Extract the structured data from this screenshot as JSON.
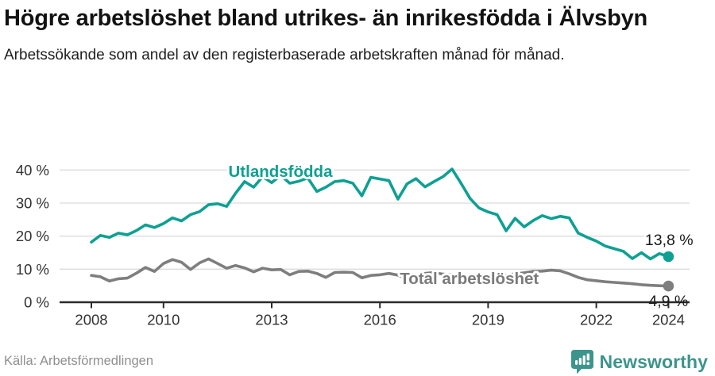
{
  "header": {
    "title": "Högre arbetslöshet bland utrikes- än inrikesfödda i Älvsbyn",
    "subtitle": "Arbetssökande som andel av den registerbaserade arbetskraften månad för månad."
  },
  "footer": {
    "source": "Källa: Arbetsförmedlingen",
    "brand": "Newsworthy"
  },
  "colors": {
    "teal_series": "#0ea093",
    "gray_series": "#7e7e7e",
    "gray_label": "#7a7a7a",
    "value_label": "#1a1a1a",
    "grid": "#dcdcdc",
    "axis": "#2b2b2b",
    "tick_text": "#333333",
    "brand_teal": "#3d948c"
  },
  "chart_data": {
    "type": "line",
    "title": "Högre arbetslöshet bland utrikes- än inrikesfödda i Älvsbyn",
    "subtitle": "Arbetssökande som andel av den registerbaserade arbetskraften månad för månad.",
    "xlabel": "",
    "ylabel": "",
    "xlim": [
      2007.1,
      2024.6
    ],
    "ylim": [
      0,
      43
    ],
    "grid": "horizontal",
    "legend_position": "inline",
    "x_ticks": [
      2008,
      2010,
      2013,
      2016,
      2019,
      2022,
      2024
    ],
    "x_tick_labels": [
      "2008",
      "2010",
      "2013",
      "2016",
      "2019",
      "2022",
      "2024"
    ],
    "y_ticks": [
      0,
      10,
      20,
      30,
      40
    ],
    "y_tick_labels": [
      "0 %",
      "10 %",
      "20 %",
      "30 %",
      "40 %"
    ],
    "x": [
      2008,
      2008.25,
      2008.5,
      2008.75,
      2009,
      2009.25,
      2009.5,
      2009.75,
      2010,
      2010.25,
      2010.5,
      2010.75,
      2011,
      2011.25,
      2011.5,
      2011.75,
      2012,
      2012.25,
      2012.5,
      2012.75,
      2013,
      2013.25,
      2013.5,
      2013.75,
      2014,
      2014.25,
      2014.5,
      2014.75,
      2015,
      2015.25,
      2015.5,
      2015.75,
      2016,
      2016.25,
      2016.5,
      2016.75,
      2017,
      2017.25,
      2017.5,
      2017.75,
      2018,
      2018.25,
      2018.5,
      2018.75,
      2019,
      2019.25,
      2019.5,
      2019.75,
      2020,
      2020.25,
      2020.5,
      2020.75,
      2021,
      2021.25,
      2021.5,
      2021.75,
      2022,
      2022.25,
      2022.5,
      2022.75,
      2023,
      2023.25,
      2023.5,
      2023.75,
      2024
    ],
    "series": [
      {
        "name": "Utlandsfödda",
        "color": "#0ea093",
        "end_value": 13.8,
        "end_label": "13,8 %",
        "values": [
          18.2,
          20.2,
          19.6,
          20.9,
          20.4,
          21.7,
          23.4,
          22.6,
          23.8,
          25.5,
          24.6,
          26.5,
          27.4,
          29.5,
          29.8,
          29.0,
          33.0,
          36.5,
          34.8,
          38.0,
          36.2,
          38.4,
          36.0,
          36.6,
          37.6,
          33.5,
          34.8,
          36.5,
          36.8,
          36.0,
          32.2,
          37.8,
          37.3,
          36.8,
          31.2,
          35.8,
          37.4,
          34.9,
          36.5,
          38.0,
          40.3,
          36.0,
          31.4,
          28.5,
          27.3,
          26.5,
          21.6,
          25.4,
          22.8,
          24.7,
          26.2,
          25.3,
          26.0,
          25.5,
          20.9,
          19.6,
          18.5,
          17.0,
          16.2,
          15.4,
          13.2,
          15.0,
          13.1,
          14.7,
          13.8
        ]
      },
      {
        "name": "Total arbetslöshet",
        "color": "#7e7e7e",
        "end_value": 4.9,
        "end_label": "4,9 %",
        "values": [
          8.1,
          7.7,
          6.4,
          7.1,
          7.3,
          8.8,
          10.5,
          9.3,
          11.7,
          12.9,
          12.1,
          9.9,
          11.9,
          13.1,
          11.7,
          10.3,
          11.1,
          10.4,
          9.2,
          10.3,
          9.8,
          9.9,
          8.3,
          9.3,
          9.4,
          8.7,
          7.5,
          9.0,
          9.1,
          9.0,
          7.4,
          8.1,
          8.3,
          8.7,
          8.2,
          7.1,
          8.0,
          8.7,
          9.0,
          8.5,
          8.3,
          8.0,
          7.8,
          7.6,
          7.7,
          8.0,
          8.2,
          8.6,
          8.9,
          9.3,
          9.4,
          9.7,
          9.5,
          8.6,
          7.5,
          6.8,
          6.5,
          6.2,
          6.0,
          5.8,
          5.6,
          5.3,
          5.1,
          5.0,
          4.9
        ]
      }
    ],
    "labels": [
      {
        "text": "Utlandsfödda",
        "x": 2011.8,
        "y": 37.9,
        "color": "#0ea093",
        "bold": true,
        "halo": true
      },
      {
        "text": "Total arbetslöshet",
        "x": 2016.55,
        "y": 5.5,
        "color": "#7a7a7a",
        "bold": true,
        "halo": true
      },
      {
        "text": "13,8 %",
        "x": 2023.35,
        "y": 17.3,
        "color": "#1a1a1a",
        "bold": false,
        "halo": true
      },
      {
        "text": "4,9 %",
        "x": 2023.45,
        "y": -1.2,
        "color": "#1a1a1a",
        "bold": false,
        "halo": false
      }
    ]
  }
}
